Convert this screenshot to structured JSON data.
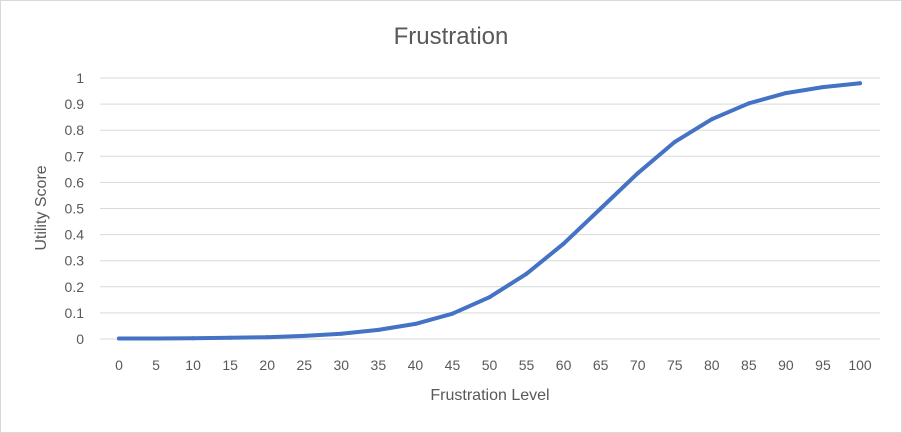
{
  "chart_data": {
    "type": "line",
    "title": "Frustration",
    "xlabel": "Frustration Level",
    "ylabel": "Utility Score",
    "x": [
      0,
      5,
      10,
      15,
      20,
      25,
      30,
      35,
      40,
      45,
      50,
      55,
      60,
      65,
      70,
      75,
      80,
      85,
      90,
      95,
      100
    ],
    "series": [
      {
        "values": [
          0.002,
          0.002,
          0.003,
          0.005,
          0.007,
          0.012,
          0.02,
          0.035,
          0.058,
          0.097,
          0.16,
          0.25,
          0.365,
          0.5,
          0.635,
          0.755,
          0.842,
          0.903,
          0.942,
          0.965,
          0.98
        ]
      }
    ],
    "ylim": [
      0,
      1
    ],
    "yticks": [
      "0",
      "0.1",
      "0.2",
      "0.3",
      "0.4",
      "0.5",
      "0.6",
      "0.7",
      "0.8",
      "0.9",
      "1"
    ],
    "xticks": [
      "0",
      "5",
      "10",
      "15",
      "20",
      "25",
      "30",
      "35",
      "40",
      "45",
      "50",
      "55",
      "60",
      "65",
      "70",
      "75",
      "80",
      "85",
      "90",
      "95",
      "100"
    ],
    "grid": true,
    "legend": "none",
    "colors": {
      "line": "#4472C4",
      "grid": "#d9d9d9",
      "text": "#595959"
    }
  }
}
